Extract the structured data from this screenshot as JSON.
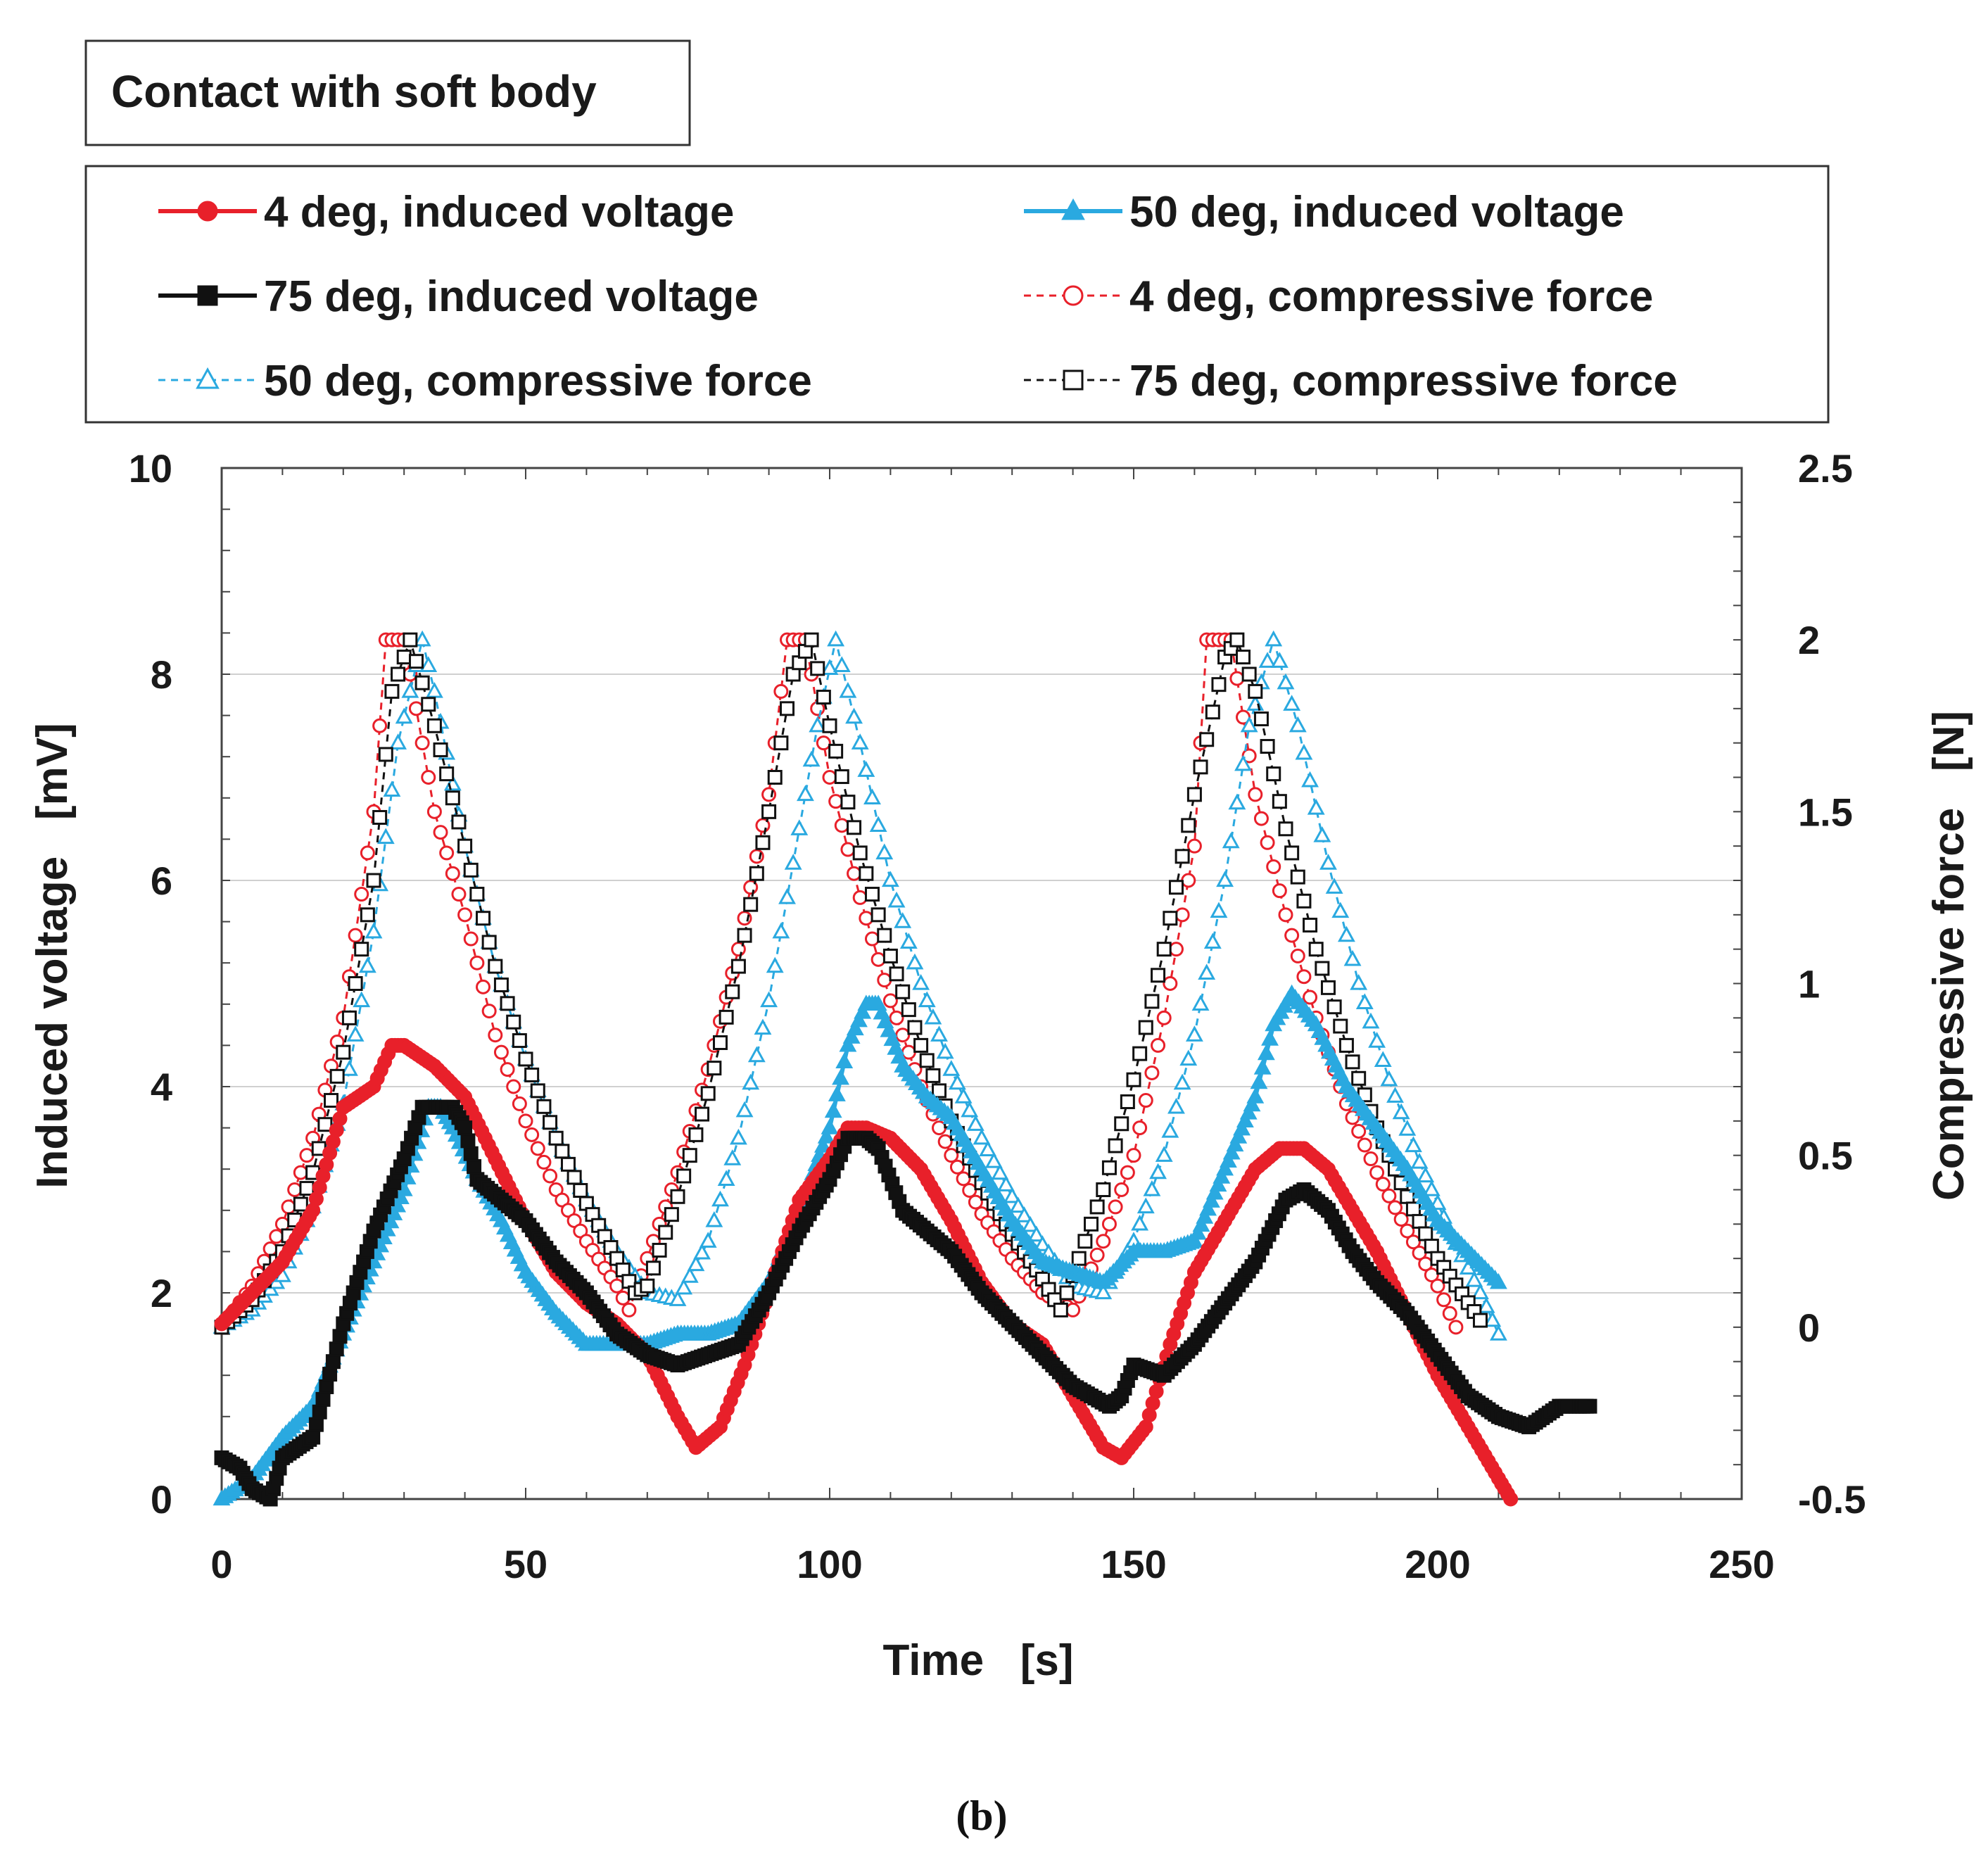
{
  "caption": "(b)",
  "title_box": "Contact with soft body",
  "chart_data": {
    "type": "line",
    "title": "Contact with soft body",
    "xlabel": "Time   [s]",
    "ylabel": "Induced voltage   [mV]",
    "y2label": "Compressive force   [N]",
    "xlim": [
      0,
      250
    ],
    "ylim": [
      0,
      10
    ],
    "y2lim": [
      -0.5,
      2.5
    ],
    "xticks": [
      "0",
      "50",
      "100",
      "150",
      "200",
      "250"
    ],
    "yticks": [
      "0",
      "2",
      "4",
      "6",
      "8",
      "10"
    ],
    "y2ticks": [
      "-0.5",
      "0",
      "0.5",
      "1",
      "1.5",
      "2",
      "2.5"
    ],
    "grid": "horizontal",
    "legend_position": "top",
    "series": [
      {
        "name": "4 deg, induced voltage",
        "axis": "left",
        "color": "#e8202a",
        "marker": "filled-circle",
        "style": "solid",
        "x": [
          0,
          5,
          10,
          15,
          20,
          25,
          28,
          30,
          35,
          40,
          45,
          50,
          55,
          60,
          65,
          70,
          75,
          78,
          82,
          86,
          90,
          95,
          100,
          103,
          106,
          110,
          115,
          120,
          125,
          130,
          135,
          140,
          145,
          148,
          152,
          156,
          160,
          165,
          170,
          174,
          178,
          182,
          186,
          190,
          195,
          200,
          205,
          210,
          212
        ],
        "y": [
          1.7,
          2.0,
          2.3,
          2.8,
          3.8,
          4.0,
          4.4,
          4.4,
          4.2,
          3.9,
          3.3,
          2.7,
          2.2,
          1.9,
          1.7,
          1.4,
          0.8,
          0.5,
          0.7,
          1.3,
          2.0,
          2.9,
          3.3,
          3.6,
          3.6,
          3.5,
          3.2,
          2.7,
          2.1,
          1.7,
          1.5,
          1.0,
          0.5,
          0.4,
          0.7,
          1.5,
          2.2,
          2.7,
          3.2,
          3.4,
          3.4,
          3.2,
          2.8,
          2.4,
          1.8,
          1.2,
          0.7,
          0.2,
          0.0
        ]
      },
      {
        "name": "50 deg, induced voltage",
        "axis": "left",
        "color": "#2aa9e0",
        "marker": "filled-triangle",
        "style": "solid",
        "x": [
          0,
          5,
          10,
          15,
          20,
          25,
          30,
          34,
          36,
          38,
          42,
          46,
          50,
          55,
          60,
          65,
          70,
          75,
          80,
          85,
          90,
          95,
          100,
          103,
          106,
          108,
          112,
          116,
          120,
          125,
          130,
          135,
          140,
          145,
          150,
          155,
          160,
          165,
          170,
          173,
          176,
          180,
          185,
          190,
          195,
          200,
          205,
          210
        ],
        "y": [
          0.0,
          0.2,
          0.6,
          0.9,
          1.6,
          2.3,
          3.0,
          3.8,
          3.8,
          3.6,
          3.1,
          2.7,
          2.2,
          1.8,
          1.5,
          1.5,
          1.5,
          1.6,
          1.6,
          1.7,
          2.1,
          2.8,
          3.6,
          4.4,
          4.8,
          4.8,
          4.2,
          3.9,
          3.7,
          3.2,
          2.7,
          2.3,
          2.2,
          2.1,
          2.4,
          2.4,
          2.5,
          3.2,
          3.9,
          4.6,
          4.9,
          4.6,
          4.0,
          3.6,
          3.2,
          2.7,
          2.4,
          2.1
        ]
      },
      {
        "name": "75 deg, induced voltage",
        "axis": "left",
        "color": "#111111",
        "marker": "filled-square",
        "style": "solid",
        "x": [
          0,
          3,
          5,
          8,
          10,
          15,
          20,
          25,
          30,
          33,
          36,
          38,
          40,
          42,
          46,
          50,
          55,
          60,
          65,
          70,
          75,
          80,
          85,
          90,
          95,
          100,
          103,
          106,
          108,
          112,
          116,
          120,
          125,
          130,
          135,
          140,
          143,
          146,
          148,
          150,
          155,
          160,
          165,
          170,
          175,
          178,
          182,
          186,
          190,
          195,
          200,
          205,
          210,
          215,
          220,
          225
        ],
        "y": [
          0.4,
          0.3,
          0.1,
          0.0,
          0.4,
          0.6,
          1.7,
          2.6,
          3.3,
          3.8,
          3.8,
          3.8,
          3.6,
          3.1,
          2.9,
          2.7,
          2.3,
          2.0,
          1.6,
          1.4,
          1.3,
          1.4,
          1.5,
          2.0,
          2.6,
          3.1,
          3.5,
          3.5,
          3.4,
          2.8,
          2.6,
          2.4,
          2.0,
          1.7,
          1.4,
          1.1,
          1.0,
          0.9,
          1.0,
          1.3,
          1.2,
          1.5,
          1.9,
          2.3,
          2.9,
          3.0,
          2.8,
          2.4,
          2.1,
          1.8,
          1.4,
          1.0,
          0.8,
          0.7,
          0.9,
          0.9
        ]
      },
      {
        "name": "4 deg, compressive force",
        "axis": "right",
        "color": "#e8202a",
        "marker": "open-circle",
        "style": "dashed",
        "x": [
          0,
          5,
          10,
          15,
          20,
          25,
          27,
          30,
          35,
          40,
          45,
          50,
          55,
          60,
          65,
          67,
          70,
          75,
          80,
          85,
          90,
          93,
          96,
          100,
          105,
          110,
          115,
          120,
          125,
          130,
          135,
          140,
          145,
          150,
          155,
          160,
          162,
          166,
          170,
          175,
          180,
          185,
          190,
          195,
          200,
          203
        ],
        "y": [
          0.0,
          0.12,
          0.3,
          0.55,
          0.9,
          1.5,
          2.0,
          2.0,
          1.5,
          1.2,
          0.85,
          0.6,
          0.4,
          0.25,
          0.12,
          0.05,
          0.2,
          0.45,
          0.75,
          1.1,
          1.55,
          2.0,
          2.0,
          1.6,
          1.25,
          0.95,
          0.7,
          0.5,
          0.33,
          0.2,
          0.1,
          0.05,
          0.25,
          0.5,
          0.9,
          1.4,
          2.0,
          2.0,
          1.55,
          1.2,
          0.9,
          0.65,
          0.45,
          0.28,
          0.12,
          0.0
        ]
      },
      {
        "name": "50 deg, compressive force",
        "axis": "right",
        "color": "#2aa9e0",
        "marker": "open-triangle",
        "style": "dashed",
        "x": [
          0,
          5,
          10,
          15,
          20,
          25,
          29,
          33,
          35,
          40,
          45,
          50,
          55,
          60,
          65,
          70,
          75,
          80,
          85,
          90,
          95,
          98,
          101,
          105,
          110,
          115,
          120,
          125,
          130,
          135,
          140,
          145,
          150,
          155,
          160,
          165,
          169,
          173,
          177,
          182,
          187,
          192,
          197,
          202,
          207,
          210
        ],
        "y": [
          0.0,
          0.05,
          0.15,
          0.35,
          0.65,
          1.15,
          1.7,
          2.0,
          1.85,
          1.4,
          1.05,
          0.78,
          0.55,
          0.37,
          0.22,
          0.1,
          0.08,
          0.25,
          0.55,
          0.95,
          1.45,
          1.75,
          2.0,
          1.7,
          1.3,
          1.0,
          0.75,
          0.55,
          0.38,
          0.24,
          0.12,
          0.1,
          0.25,
          0.5,
          0.85,
          1.3,
          1.75,
          2.0,
          1.75,
          1.35,
          1.0,
          0.72,
          0.48,
          0.28,
          0.1,
          -0.02
        ]
      },
      {
        "name": "75 deg, compressive force",
        "axis": "right",
        "color": "#111111",
        "marker": "open-square",
        "style": "dashed",
        "x": [
          0,
          5,
          10,
          15,
          20,
          25,
          28,
          31,
          35,
          40,
          45,
          50,
          55,
          60,
          65,
          68,
          70,
          75,
          80,
          85,
          90,
          94,
          97,
          100,
          105,
          110,
          115,
          120,
          125,
          130,
          135,
          138,
          140,
          145,
          150,
          155,
          160,
          165,
          167,
          170,
          175,
          180,
          185,
          190,
          195,
          200,
          207
        ],
        "y": [
          0.0,
          0.08,
          0.22,
          0.45,
          0.8,
          1.3,
          1.85,
          2.0,
          1.75,
          1.4,
          1.05,
          0.78,
          0.55,
          0.36,
          0.2,
          0.1,
          0.12,
          0.38,
          0.68,
          1.05,
          1.5,
          1.9,
          2.0,
          1.75,
          1.38,
          1.08,
          0.82,
          0.6,
          0.42,
          0.27,
          0.14,
          0.05,
          0.15,
          0.4,
          0.72,
          1.1,
          1.55,
          1.95,
          2.0,
          1.85,
          1.45,
          1.1,
          0.82,
          0.58,
          0.38,
          0.2,
          0.02
        ]
      }
    ]
  }
}
